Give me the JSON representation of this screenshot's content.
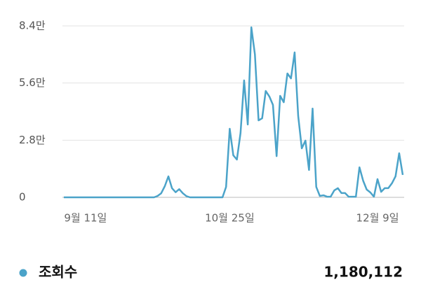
{
  "chart_data": {
    "type": "line",
    "categories": [
      null,
      null,
      null,
      null,
      null,
      null,
      "9월 11일",
      null,
      null,
      null,
      null,
      null,
      null,
      null,
      null,
      null,
      null,
      null,
      null,
      null,
      null,
      null,
      null,
      null,
      null,
      null,
      null,
      null,
      null,
      null,
      null,
      null,
      null,
      null,
      null,
      null,
      null,
      null,
      null,
      null,
      null,
      null,
      null,
      null,
      null,
      null,
      "10월 25일",
      null,
      null,
      null,
      null,
      null,
      null,
      null,
      null,
      null,
      null,
      null,
      null,
      null,
      null,
      null,
      null,
      null,
      null,
      null,
      null,
      null,
      null,
      null,
      null,
      null,
      null,
      null,
      null,
      null,
      null,
      null,
      null,
      null,
      null,
      null,
      null,
      null,
      null,
      null,
      null,
      "12월 9일",
      null,
      null,
      null,
      null,
      null,
      null,
      null
    ],
    "series": [
      {
        "name": "조회수",
        "color": "#4ba3c9",
        "values": [
          0,
          0,
          0,
          0,
          0,
          0,
          0,
          0,
          0,
          0,
          0,
          0,
          0,
          0,
          0,
          0,
          0,
          0,
          0,
          0,
          0,
          0,
          0,
          0,
          0,
          0,
          700,
          2000,
          5500,
          10300,
          4500,
          2500,
          4000,
          2000,
          600,
          0,
          0,
          0,
          0,
          0,
          0,
          0,
          0,
          0,
          0,
          5100,
          33600,
          20600,
          18500,
          31500,
          57300,
          35700,
          83300,
          70000,
          37700,
          38700,
          52100,
          49400,
          45300,
          20200,
          49700,
          46600,
          60700,
          58300,
          71000,
          39800,
          24000,
          27800,
          13400,
          43500,
          5100,
          700,
          1000,
          300,
          300,
          3400,
          4500,
          2100,
          2100,
          300,
          300,
          300,
          14700,
          8200,
          3800,
          2400,
          300,
          8900,
          2700,
          4500,
          4500,
          6900,
          10300,
          21600,
          11000
        ]
      }
    ],
    "ylim": [
      0,
      84000
    ],
    "yticks": [
      0,
      {
        "value": 28000,
        "label": "2.8만"
      },
      {
        "value": 56000,
        "label": "5.6만"
      },
      {
        "value": 84000,
        "label": "8.4만"
      }
    ],
    "grid": true,
    "total": {
      "value": 1180112,
      "label": "1,180,112"
    }
  }
}
